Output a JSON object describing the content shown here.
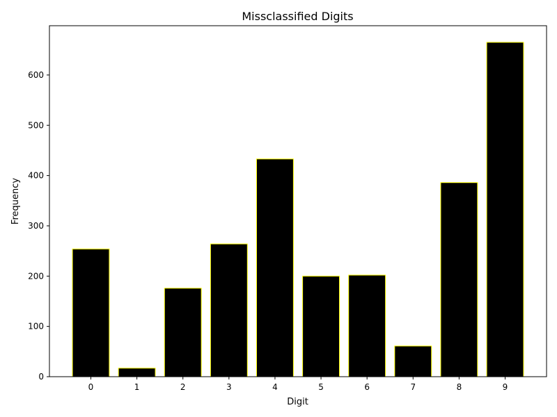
{
  "chart_data": {
    "type": "bar",
    "title": "Missclassified Digits",
    "xlabel": "Digit",
    "ylabel": "Frequency",
    "categories": [
      "0",
      "1",
      "2",
      "3",
      "4",
      "5",
      "6",
      "7",
      "8",
      "9"
    ],
    "values": [
      254,
      17,
      176,
      264,
      433,
      200,
      202,
      61,
      386,
      665
    ],
    "ylim": [
      0,
      698
    ],
    "yticks": [
      "0",
      "100",
      "200",
      "300",
      "400",
      "500",
      "600"
    ],
    "grid": false,
    "bar_color": "#000000",
    "edge_color": "#ffff00"
  }
}
